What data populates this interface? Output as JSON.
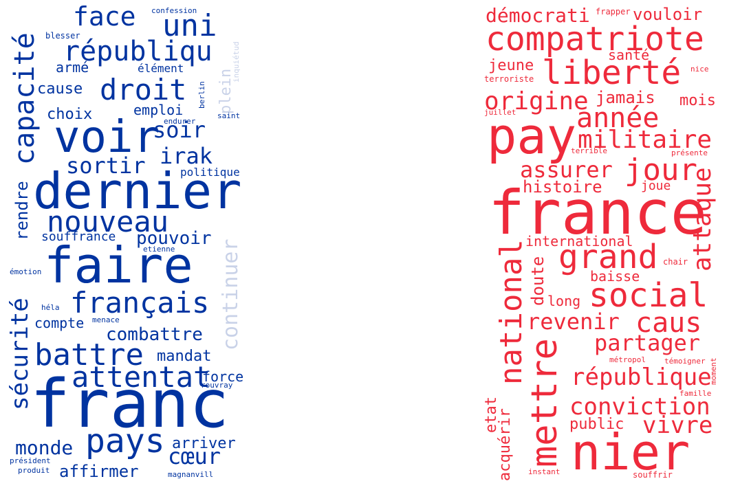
{
  "colors": {
    "left": "#0033a0",
    "left_faded": "#c9d2e8",
    "right": "#ee2a3b",
    "right_faded": "#f5a6ad"
  },
  "clouds": [
    {
      "name": "left",
      "words": [
        {
          "text": "confession",
          "color": "left"
        },
        {
          "text": "face",
          "color": "left"
        },
        {
          "text": "uni",
          "color": "left"
        },
        {
          "text": "blesser",
          "color": "left"
        },
        {
          "text": "capacité",
          "color": "left"
        },
        {
          "text": "républiqu",
          "color": "left"
        },
        {
          "text": "inquiétud",
          "color": "left_faded"
        },
        {
          "text": "armé",
          "color": "left"
        },
        {
          "text": "élément",
          "color": "left"
        },
        {
          "text": "cause",
          "color": "left"
        },
        {
          "text": "droit",
          "color": "left"
        },
        {
          "text": "berlin",
          "color": "left"
        },
        {
          "text": "plein",
          "color": "left_faded"
        },
        {
          "text": "choix",
          "color": "left"
        },
        {
          "text": "emploi",
          "color": "left"
        },
        {
          "text": "saint",
          "color": "left"
        },
        {
          "text": "endurer",
          "color": "left"
        },
        {
          "text": "voir",
          "color": "left"
        },
        {
          "text": "soir",
          "color": "left"
        },
        {
          "text": "irak",
          "color": "left"
        },
        {
          "text": "sortir",
          "color": "left"
        },
        {
          "text": "politique",
          "color": "left"
        },
        {
          "text": "rendre",
          "color": "left"
        },
        {
          "text": "dernier",
          "color": "left"
        },
        {
          "text": "nouveau",
          "color": "left"
        },
        {
          "text": "continuer",
          "color": "left_faded"
        },
        {
          "text": "souffrance",
          "color": "left"
        },
        {
          "text": "pouvoir",
          "color": "left"
        },
        {
          "text": "etienne",
          "color": "left"
        },
        {
          "text": "émotion",
          "color": "left"
        },
        {
          "text": "faire",
          "color": "left"
        },
        {
          "text": "sécurité",
          "color": "left"
        },
        {
          "text": "héla",
          "color": "left"
        },
        {
          "text": "français",
          "color": "left"
        },
        {
          "text": "compte",
          "color": "left"
        },
        {
          "text": "menace",
          "color": "left"
        },
        {
          "text": "combattre",
          "color": "left"
        },
        {
          "text": "battre",
          "color": "left"
        },
        {
          "text": "mandat",
          "color": "left"
        },
        {
          "text": "attentat",
          "color": "left"
        },
        {
          "text": "force",
          "color": "left"
        },
        {
          "text": "rouvray",
          "color": "left"
        },
        {
          "text": "franc",
          "color": "left"
        },
        {
          "text": "monde",
          "color": "left"
        },
        {
          "text": "pays",
          "color": "left"
        },
        {
          "text": "arriver",
          "color": "left"
        },
        {
          "text": "cœur",
          "color": "left"
        },
        {
          "text": "président",
          "color": "left"
        },
        {
          "text": "produit",
          "color": "left"
        },
        {
          "text": "affirmer",
          "color": "left"
        },
        {
          "text": "magnanvill",
          "color": "left"
        }
      ]
    },
    {
      "name": "right",
      "words": [
        {
          "text": "démocrati",
          "color": "right"
        },
        {
          "text": "frapper",
          "color": "right"
        },
        {
          "text": "vouloir",
          "color": "right"
        },
        {
          "text": "compatriote",
          "color": "right"
        },
        {
          "text": "santé",
          "color": "right"
        },
        {
          "text": "jeune",
          "color": "right"
        },
        {
          "text": "liberté",
          "color": "right"
        },
        {
          "text": "terroriste",
          "color": "right"
        },
        {
          "text": "nice",
          "color": "right"
        },
        {
          "text": "origine",
          "color": "right"
        },
        {
          "text": "jamais",
          "color": "right"
        },
        {
          "text": "mois",
          "color": "right"
        },
        {
          "text": "juillet",
          "color": "right"
        },
        {
          "text": "année",
          "color": "right"
        },
        {
          "text": "pay",
          "color": "right"
        },
        {
          "text": "militaire",
          "color": "right"
        },
        {
          "text": "terrible",
          "color": "right"
        },
        {
          "text": "présente",
          "color": "right"
        },
        {
          "text": "assurer",
          "color": "right"
        },
        {
          "text": "jour",
          "color": "right"
        },
        {
          "text": "histoire",
          "color": "right"
        },
        {
          "text": "joue",
          "color": "right"
        },
        {
          "text": "attaque",
          "color": "right"
        },
        {
          "text": "france",
          "color": "right"
        },
        {
          "text": "international",
          "color": "right"
        },
        {
          "text": "national",
          "color": "right"
        },
        {
          "text": "grand",
          "color": "right"
        },
        {
          "text": "chair",
          "color": "right"
        },
        {
          "text": "doute",
          "color": "right"
        },
        {
          "text": "baisse",
          "color": "right"
        },
        {
          "text": "long",
          "color": "right"
        },
        {
          "text": "social",
          "color": "right"
        },
        {
          "text": "revenir",
          "color": "right"
        },
        {
          "text": "caus",
          "color": "right"
        },
        {
          "text": "partager",
          "color": "right"
        },
        {
          "text": "mettre",
          "color": "right"
        },
        {
          "text": "métropol",
          "color": "right"
        },
        {
          "text": "témoigner",
          "color": "right"
        },
        {
          "text": "république",
          "color": "right"
        },
        {
          "text": "moment",
          "color": "right"
        },
        {
          "text": "etat",
          "color": "right"
        },
        {
          "text": "acquérir",
          "color": "right"
        },
        {
          "text": "famille",
          "color": "right"
        },
        {
          "text": "conviction",
          "color": "right"
        },
        {
          "text": "public",
          "color": "right"
        },
        {
          "text": "vivre",
          "color": "right"
        },
        {
          "text": "nier",
          "color": "right"
        },
        {
          "text": "instant",
          "color": "right"
        },
        {
          "text": "souffrir",
          "color": "right"
        }
      ]
    }
  ]
}
